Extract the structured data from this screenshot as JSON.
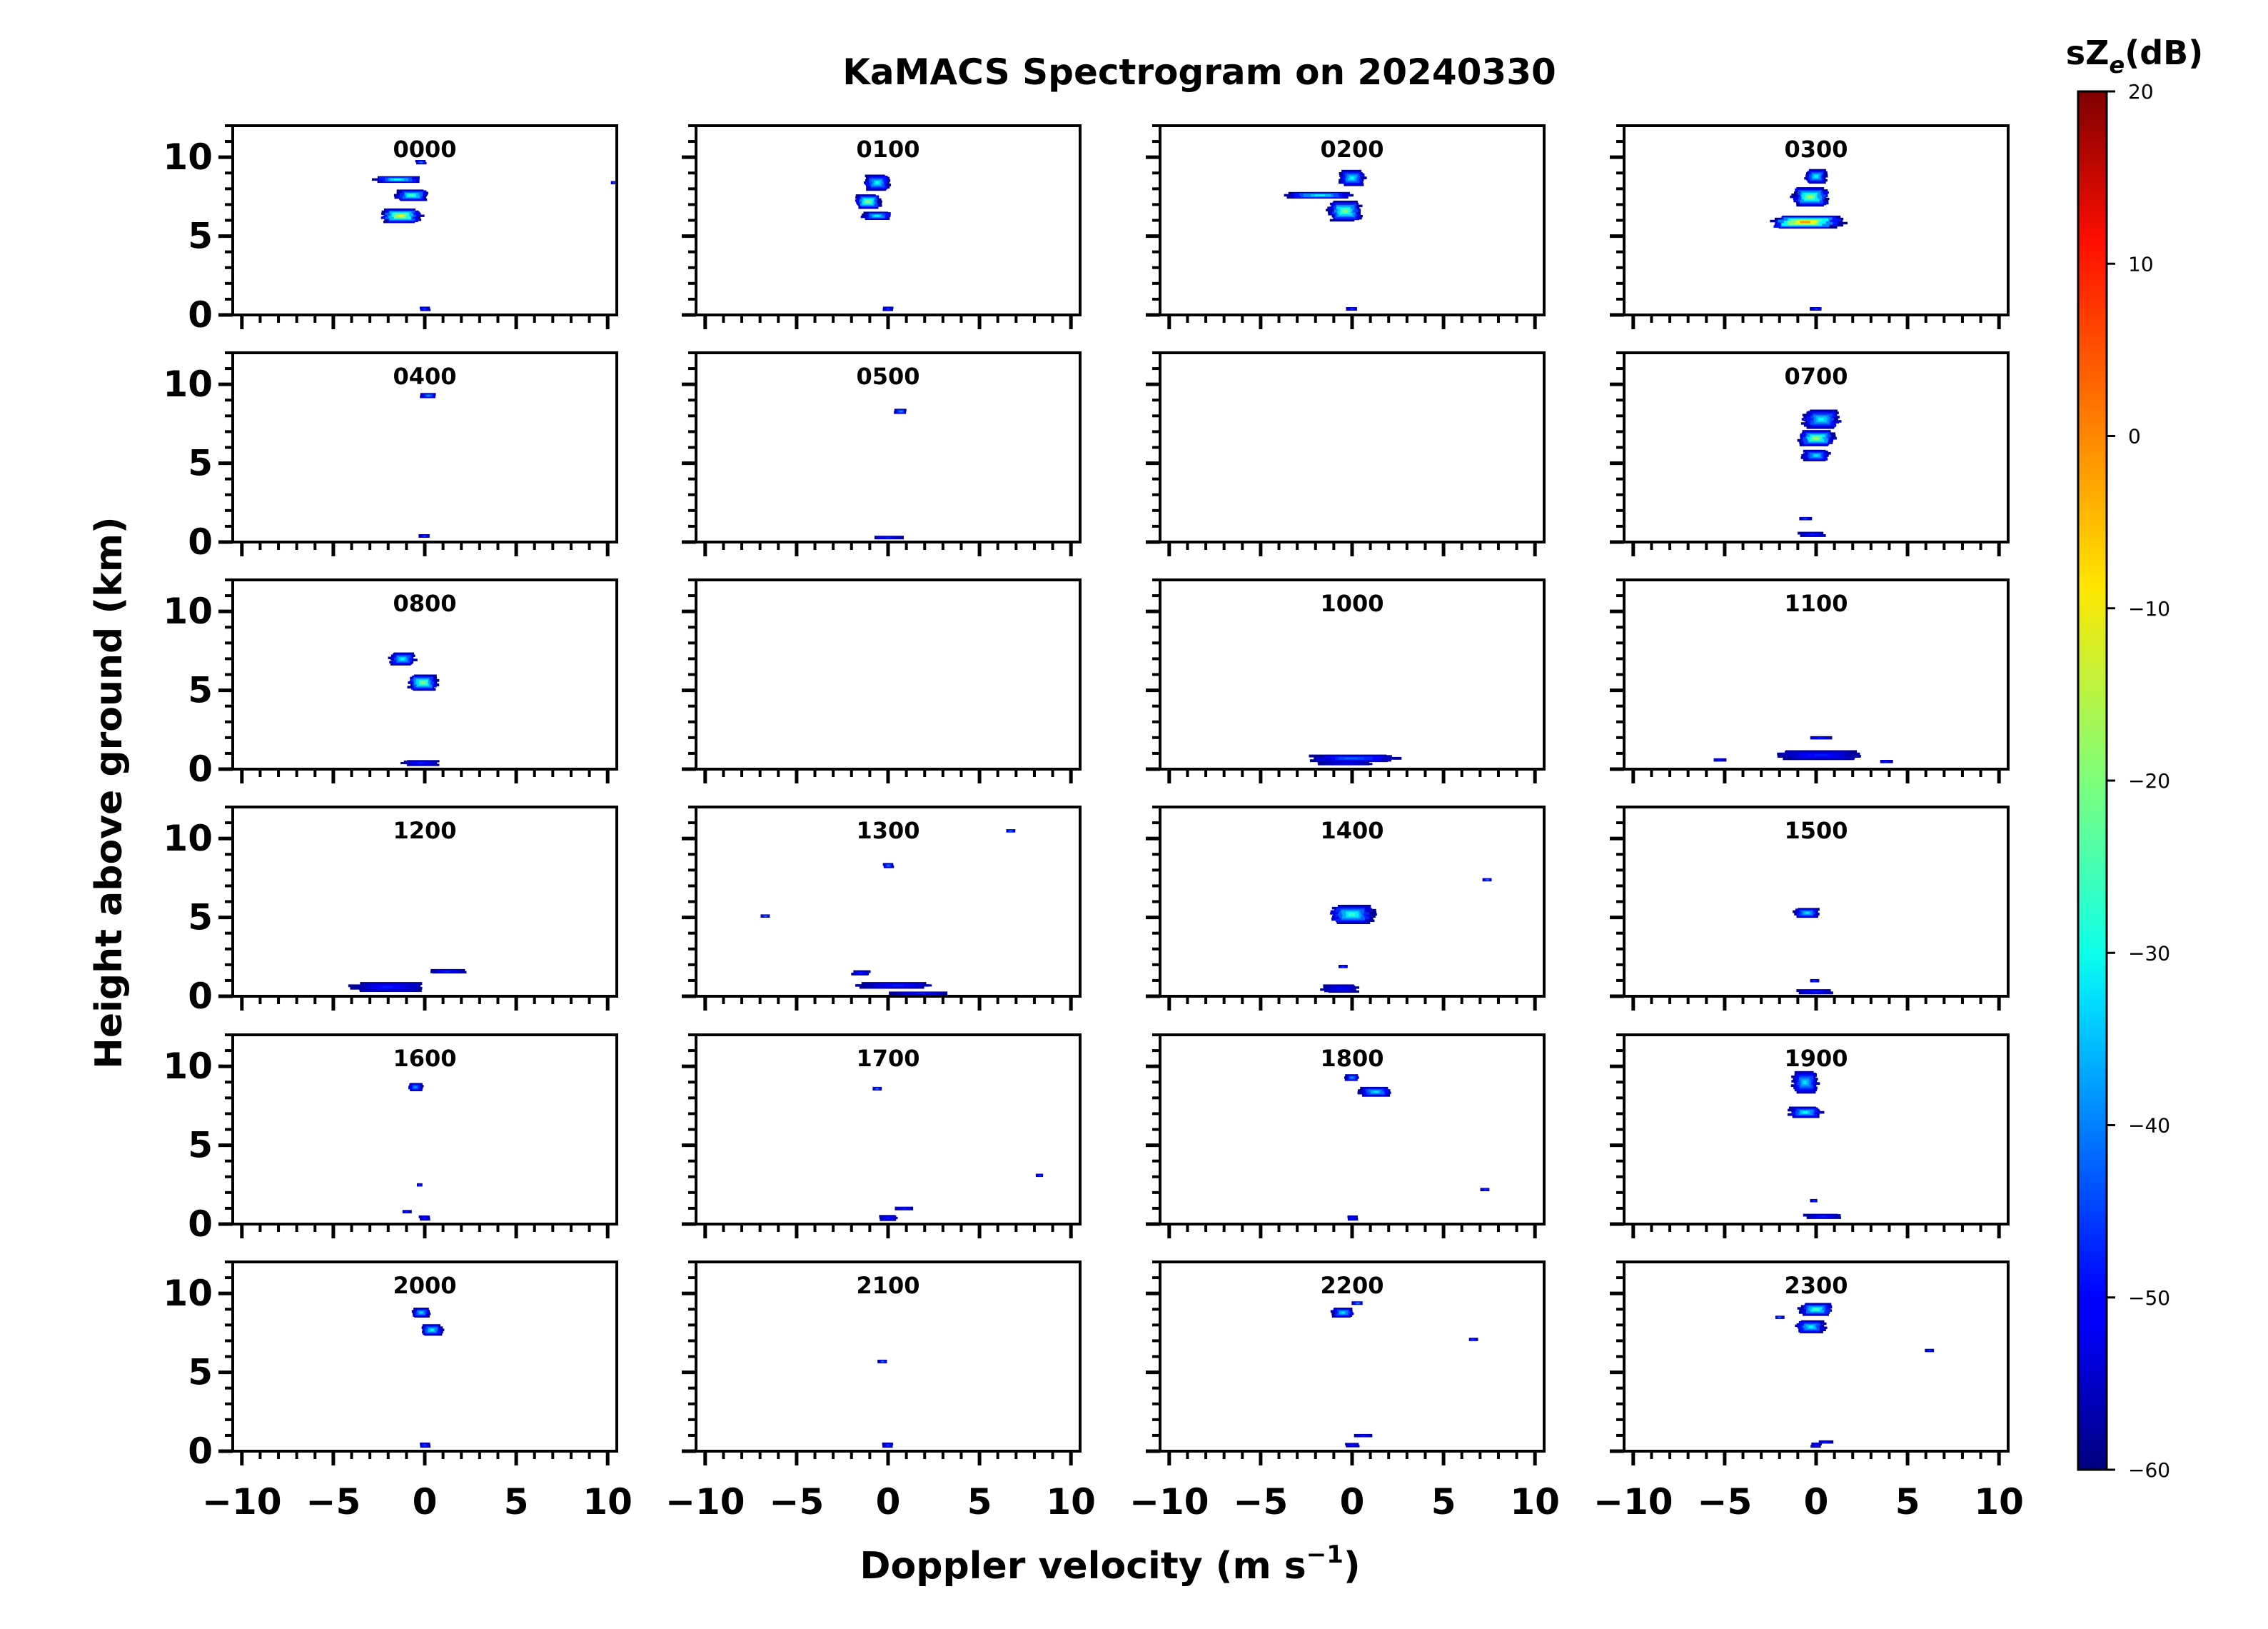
{
  "chart_data": {
    "type": "heatmap",
    "title": "KaMACS Spectrogram on 20240330",
    "xlabel": "Doppler velocity (m s",
    "xlabel_sup": "−1",
    "xlabel_end": ")",
    "ylabel": "Height above ground (km)",
    "xlim": [
      -10.5,
      10.5
    ],
    "ylim": [
      0,
      12
    ],
    "x_ticks": [
      -10,
      -5,
      0,
      5,
      10
    ],
    "x_tick_labels": [
      "−10",
      "−5",
      "0",
      "5",
      "10"
    ],
    "y_ticks": [
      0,
      5,
      10
    ],
    "y_tick_labels": [
      "0",
      "5",
      "10"
    ],
    "colorbar": {
      "title_main": "sZ",
      "title_sub": "e",
      "title_end": "(dB)",
      "range": [
        -60,
        20
      ],
      "ticks": [
        20,
        10,
        0,
        -10,
        -20,
        -30,
        -40,
        -50,
        -60
      ],
      "tick_labels": [
        "20",
        "10",
        "0",
        "−10",
        "−20",
        "−30",
        "−40",
        "−50",
        "−60"
      ],
      "colormap": "jet"
    },
    "panels": [
      {
        "label": "0000",
        "echoes": [
          {
            "v": -1.5,
            "h": 8.6,
            "dv": 2.6,
            "dh": 0.4,
            "peak": -28
          },
          {
            "v": -0.7,
            "h": 7.6,
            "dv": 1.8,
            "dh": 0.7,
            "peak": -25
          },
          {
            "v": -1.3,
            "h": 6.3,
            "dv": 2.2,
            "dh": 0.9,
            "peak": -12
          },
          {
            "v": -0.2,
            "h": 9.7,
            "dv": 0.6,
            "dh": 0.25,
            "peak": -40
          },
          {
            "v": 0.0,
            "h": 0.4,
            "dv": 0.6,
            "dh": 0.25,
            "peak": -45
          },
          {
            "v": 10.3,
            "h": 8.4,
            "dv": 0.2,
            "dh": 0.12,
            "peak": -45
          }
        ]
      },
      {
        "label": "0100",
        "echoes": [
          {
            "v": -0.6,
            "h": 8.4,
            "dv": 1.4,
            "dh": 1.0,
            "peak": -30
          },
          {
            "v": -1.1,
            "h": 7.2,
            "dv": 1.4,
            "dh": 0.9,
            "peak": -18
          },
          {
            "v": -0.6,
            "h": 6.3,
            "dv": 1.6,
            "dh": 0.5,
            "peak": -30
          },
          {
            "v": 0.0,
            "h": 0.4,
            "dv": 0.6,
            "dh": 0.25,
            "peak": -45
          }
        ]
      },
      {
        "label": "0200",
        "echoes": [
          {
            "v": 0.0,
            "h": 8.7,
            "dv": 1.4,
            "dh": 1.0,
            "peak": -30
          },
          {
            "v": -1.8,
            "h": 7.6,
            "dv": 3.8,
            "dh": 0.4,
            "peak": -30
          },
          {
            "v": -0.4,
            "h": 6.6,
            "dv": 1.8,
            "dh": 1.3,
            "peak": -20
          },
          {
            "v": 0.0,
            "h": 0.4,
            "dv": 0.6,
            "dh": 0.2,
            "peak": -45
          }
        ]
      },
      {
        "label": "0300",
        "echoes": [
          {
            "v": 0.0,
            "h": 8.8,
            "dv": 1.2,
            "dh": 0.9,
            "peak": -30
          },
          {
            "v": -0.3,
            "h": 7.5,
            "dv": 2.0,
            "dh": 1.2,
            "peak": -18
          },
          {
            "v": -0.6,
            "h": 5.9,
            "dv": 4.0,
            "dh": 0.8,
            "peak": -2
          },
          {
            "v": 0.0,
            "h": 0.4,
            "dv": 0.6,
            "dh": 0.2,
            "peak": -45
          }
        ]
      },
      {
        "label": "0400",
        "echoes": [
          {
            "v": 0.2,
            "h": 9.3,
            "dv": 0.9,
            "dh": 0.3,
            "peak": -38
          },
          {
            "v": 0.0,
            "h": 0.4,
            "dv": 0.6,
            "dh": 0.2,
            "peak": -45
          }
        ]
      },
      {
        "label": "0500",
        "echoes": [
          {
            "v": 0.7,
            "h": 8.3,
            "dv": 0.7,
            "dh": 0.3,
            "peak": -38
          },
          {
            "v": 0.0,
            "h": 0.3,
            "dv": 1.6,
            "dh": 0.2,
            "peak": -48
          }
        ]
      },
      {
        "label": "",
        "echoes": []
      },
      {
        "label": "0700",
        "echoes": [
          {
            "v": 0.3,
            "h": 7.8,
            "dv": 2.0,
            "dh": 1.2,
            "peak": -30
          },
          {
            "v": 0.0,
            "h": 6.6,
            "dv": 2.0,
            "dh": 1.0,
            "peak": -18
          },
          {
            "v": 0.0,
            "h": 5.5,
            "dv": 1.5,
            "dh": 0.7,
            "peak": -32
          },
          {
            "v": -0.6,
            "h": 1.5,
            "dv": 0.7,
            "dh": 0.15,
            "peak": -45
          },
          {
            "v": -0.2,
            "h": 0.5,
            "dv": 1.5,
            "dh": 0.3,
            "peak": -48
          }
        ]
      },
      {
        "label": "0800",
        "echoes": [
          {
            "v": -1.2,
            "h": 7.0,
            "dv": 1.4,
            "dh": 0.8,
            "peak": -30
          },
          {
            "v": -0.1,
            "h": 5.5,
            "dv": 1.6,
            "dh": 1.0,
            "peak": -20
          },
          {
            "v": -0.2,
            "h": 0.4,
            "dv": 2.0,
            "dh": 0.35,
            "peak": -48
          }
        ]
      },
      {
        "label": "",
        "echoes": []
      },
      {
        "label": "1000",
        "echoes": [
          {
            "v": 0.0,
            "h": 0.7,
            "dv": 4.8,
            "dh": 0.45,
            "peak": -42
          },
          {
            "v": -0.3,
            "h": 0.4,
            "dv": 3.0,
            "dh": 0.25,
            "peak": -50
          }
        ]
      },
      {
        "label": "1100",
        "echoes": [
          {
            "v": 0.2,
            "h": 0.9,
            "dv": 4.6,
            "dh": 0.6,
            "peak": -48
          },
          {
            "v": -5.3,
            "h": 0.6,
            "dv": 0.7,
            "dh": 0.12,
            "peak": -48
          },
          {
            "v": 3.8,
            "h": 0.5,
            "dv": 0.7,
            "dh": 0.12,
            "peak": -48
          },
          {
            "v": 0.2,
            "h": 2.0,
            "dv": 1.2,
            "dh": 0.15,
            "peak": -48
          }
        ]
      },
      {
        "label": "1200",
        "echoes": [
          {
            "v": -2.0,
            "h": 0.6,
            "dv": 4.0,
            "dh": 0.6,
            "peak": -48
          },
          {
            "v": 1.2,
            "h": 1.6,
            "dv": 2.0,
            "dh": 0.25,
            "peak": -48
          }
        ]
      },
      {
        "label": "1300",
        "echoes": [
          {
            "v": 6.7,
            "h": 10.5,
            "dv": 0.5,
            "dh": 0.12,
            "peak": -40
          },
          {
            "v": 0.0,
            "h": 8.3,
            "dv": 0.6,
            "dh": 0.3,
            "peak": -40
          },
          {
            "v": -6.7,
            "h": 5.1,
            "dv": 0.5,
            "dh": 0.12,
            "peak": -40
          },
          {
            "v": -1.5,
            "h": 1.5,
            "dv": 1.0,
            "dh": 0.3,
            "peak": -48
          },
          {
            "v": 0.5,
            "h": 0.7,
            "dv": 4.0,
            "dh": 0.4,
            "peak": -48
          },
          {
            "v": 1.8,
            "h": 0.2,
            "dv": 3.2,
            "dh": 0.2,
            "peak": -48
          }
        ]
      },
      {
        "label": "1400",
        "echoes": [
          {
            "v": 0.0,
            "h": 5.2,
            "dv": 2.4,
            "dh": 1.2,
            "peak": -26
          },
          {
            "v": 7.4,
            "h": 7.4,
            "dv": 0.5,
            "dh": 0.15,
            "peak": -40
          },
          {
            "v": -0.5,
            "h": 1.9,
            "dv": 0.5,
            "dh": 0.12,
            "peak": -45
          },
          {
            "v": -0.6,
            "h": 0.5,
            "dv": 2.0,
            "dh": 0.5,
            "peak": -50
          }
        ]
      },
      {
        "label": "1500",
        "echoes": [
          {
            "v": -0.5,
            "h": 5.3,
            "dv": 1.4,
            "dh": 0.6,
            "peak": -32
          },
          {
            "v": -0.1,
            "h": 1.0,
            "dv": 0.5,
            "dh": 0.15,
            "peak": -45
          },
          {
            "v": 0.0,
            "h": 0.3,
            "dv": 2.0,
            "dh": 0.3,
            "peak": -48
          }
        ]
      },
      {
        "label": "1600",
        "echoes": [
          {
            "v": -0.5,
            "h": 8.7,
            "dv": 0.8,
            "dh": 0.5,
            "peak": -38
          },
          {
            "v": -0.3,
            "h": 2.5,
            "dv": 0.3,
            "dh": 0.12,
            "peak": -45
          },
          {
            "v": -1.0,
            "h": 0.8,
            "dv": 0.5,
            "dh": 0.15,
            "peak": -48
          },
          {
            "v": 0.0,
            "h": 0.4,
            "dv": 0.6,
            "dh": 0.3,
            "peak": -48
          }
        ]
      },
      {
        "label": "1700",
        "echoes": [
          {
            "v": -0.6,
            "h": 8.6,
            "dv": 0.5,
            "dh": 0.2,
            "peak": -40
          },
          {
            "v": 8.3,
            "h": 3.1,
            "dv": 0.4,
            "dh": 0.12,
            "peak": -45
          },
          {
            "v": 0.9,
            "h": 1.0,
            "dv": 1.0,
            "dh": 0.2,
            "peak": -48
          },
          {
            "v": 0.0,
            "h": 0.4,
            "dv": 1.0,
            "dh": 0.35,
            "peak": -48
          }
        ]
      },
      {
        "label": "1800",
        "echoes": [
          {
            "v": 0.0,
            "h": 9.3,
            "dv": 0.8,
            "dh": 0.4,
            "peak": -38
          },
          {
            "v": 1.3,
            "h": 8.4,
            "dv": 1.8,
            "dh": 0.6,
            "peak": -32
          },
          {
            "v": 7.3,
            "h": 2.2,
            "dv": 0.5,
            "dh": 0.12,
            "peak": -45
          },
          {
            "v": 0.0,
            "h": 0.4,
            "dv": 0.6,
            "dh": 0.3,
            "peak": -48
          }
        ]
      },
      {
        "label": "1900",
        "echoes": [
          {
            "v": -0.6,
            "h": 9.0,
            "dv": 1.4,
            "dh": 1.4,
            "peak": -32
          },
          {
            "v": -0.6,
            "h": 7.1,
            "dv": 1.8,
            "dh": 0.7,
            "peak": -30
          },
          {
            "v": -0.1,
            "h": 1.5,
            "dv": 0.4,
            "dh": 0.15,
            "peak": -45
          },
          {
            "v": 0.4,
            "h": 0.5,
            "dv": 2.0,
            "dh": 0.3,
            "peak": -48
          }
        ]
      },
      {
        "label": "2000",
        "echoes": [
          {
            "v": -0.2,
            "h": 8.8,
            "dv": 1.0,
            "dh": 0.6,
            "peak": -33
          },
          {
            "v": 0.4,
            "h": 7.7,
            "dv": 1.2,
            "dh": 0.7,
            "peak": -30
          },
          {
            "v": 0.0,
            "h": 0.4,
            "dv": 0.6,
            "dh": 0.3,
            "peak": -45
          }
        ]
      },
      {
        "label": "2100",
        "echoes": [
          {
            "v": -0.3,
            "h": 5.7,
            "dv": 0.5,
            "dh": 0.2,
            "peak": -40
          },
          {
            "v": 0.0,
            "h": 0.4,
            "dv": 0.6,
            "dh": 0.3,
            "peak": -45
          }
        ]
      },
      {
        "label": "2200",
        "echoes": [
          {
            "v": -0.5,
            "h": 8.8,
            "dv": 1.2,
            "dh": 0.6,
            "peak": -32
          },
          {
            "v": 0.3,
            "h": 9.4,
            "dv": 0.6,
            "dh": 0.2,
            "peak": -38
          },
          {
            "v": 6.6,
            "h": 7.1,
            "dv": 0.5,
            "dh": 0.12,
            "peak": -45
          },
          {
            "v": 0.6,
            "h": 1.0,
            "dv": 1.0,
            "dh": 0.15,
            "peak": -48
          },
          {
            "v": 0.0,
            "h": 0.4,
            "dv": 0.8,
            "dh": 0.25,
            "peak": -48
          }
        ]
      },
      {
        "label": "2300",
        "echoes": [
          {
            "v": 0.0,
            "h": 9.0,
            "dv": 1.8,
            "dh": 0.8,
            "peak": -25
          },
          {
            "v": -0.3,
            "h": 7.9,
            "dv": 1.6,
            "dh": 0.8,
            "peak": -30
          },
          {
            "v": -2.0,
            "h": 8.5,
            "dv": 0.5,
            "dh": 0.12,
            "peak": -40
          },
          {
            "v": 6.2,
            "h": 6.4,
            "dv": 0.5,
            "dh": 0.12,
            "peak": -45
          },
          {
            "v": 0.5,
            "h": 0.6,
            "dv": 0.8,
            "dh": 0.15,
            "peak": -48
          },
          {
            "v": 0.0,
            "h": 0.4,
            "dv": 0.6,
            "dh": 0.3,
            "peak": -48
          }
        ]
      }
    ]
  }
}
